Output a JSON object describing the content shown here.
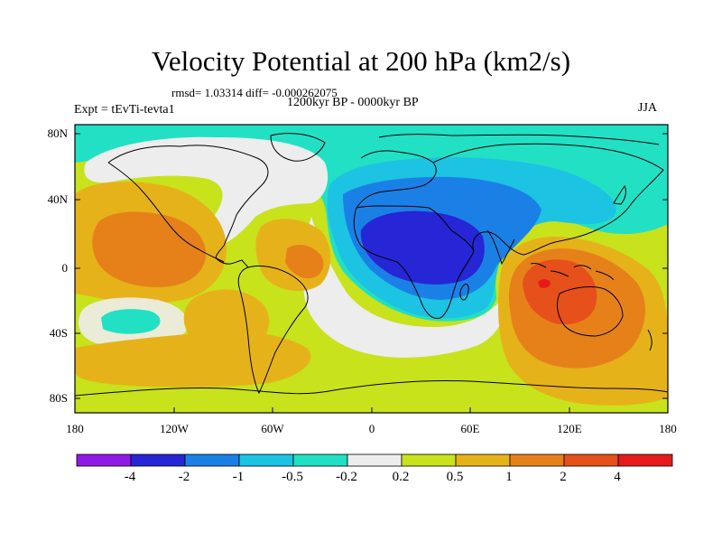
{
  "figure": {
    "title": "Velocity Potential at 200 hPa (km2/s)",
    "stats_text": "rmsd= 1.03314 diff= -0.000262075",
    "periods_text": "1200kyr BP - 0000kyr BP",
    "experiment_text": "Expt = tEvTi-tevta1",
    "season": "JJA"
  },
  "axes": {
    "lat_labels": [
      "80N",
      "40N",
      "0",
      "40S",
      "80S"
    ],
    "lon_labels": [
      "180",
      "120W",
      "60W",
      "0",
      "60E",
      "120E",
      "180"
    ]
  },
  "colorbar": {
    "labels": [
      "-4",
      "-2",
      "-1",
      "-0.5",
      "-0.2",
      "0.2",
      "0.5",
      "1",
      "2",
      "4"
    ],
    "colors": [
      "#8f1ae6",
      "#2626d6",
      "#1a80e6",
      "#1cc3e3",
      "#22e0c4",
      "#ededed",
      "#c8e21c",
      "#e6b21a",
      "#e6811a",
      "#e6501a",
      "#e61a1a"
    ]
  },
  "colors": {
    "neutral": "#ededed",
    "cyan": "#22e0c4",
    "lightblue": "#1cc3e3",
    "blue": "#1a80e6",
    "darkblue": "#2626d6",
    "lime": "#c8e21c",
    "yellow_orange": "#e6b21a",
    "orange": "#e6811a",
    "dark_orange": "#e6501a",
    "red": "#e61a1a"
  }
}
